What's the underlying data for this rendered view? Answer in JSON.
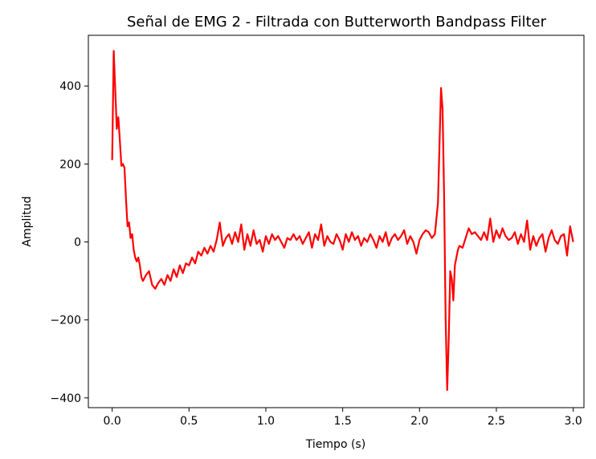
{
  "chart_data": {
    "type": "line",
    "title": "Señal de EMG 2 - Filtrada con Butterworth Bandpass Filter",
    "xlabel": "Tiempo (s)",
    "ylabel": "Amplitud",
    "xlim": [
      -0.155,
      3.07
    ],
    "ylim": [
      -425,
      530
    ],
    "xticks": [
      0.0,
      0.5,
      1.0,
      1.5,
      2.0,
      2.5,
      3.0
    ],
    "xtick_labels": [
      "0.0",
      "0.5",
      "1.0",
      "1.5",
      "2.0",
      "2.5",
      "3.0"
    ],
    "yticks": [
      400,
      200,
      0,
      -200,
      -400
    ],
    "ytick_labels": [
      "400",
      "200",
      "0",
      "−200",
      "−400"
    ],
    "grid": false,
    "line_color": "#ff0000",
    "series": [
      {
        "x": [
          0.0,
          0.01,
          0.02,
          0.03,
          0.04,
          0.05,
          0.06,
          0.07,
          0.08,
          0.09,
          0.1,
          0.11,
          0.12,
          0.13,
          0.14,
          0.15,
          0.16,
          0.17,
          0.18,
          0.19,
          0.2,
          0.22,
          0.24,
          0.26,
          0.28,
          0.3,
          0.32,
          0.34,
          0.36,
          0.38,
          0.4,
          0.42,
          0.44,
          0.46,
          0.48,
          0.5,
          0.52,
          0.54,
          0.56,
          0.58,
          0.6,
          0.62,
          0.64,
          0.66,
          0.68,
          0.7,
          0.72,
          0.74,
          0.76,
          0.78,
          0.8,
          0.82,
          0.84,
          0.86,
          0.88,
          0.9,
          0.92,
          0.94,
          0.96,
          0.98,
          1.0,
          1.02,
          1.04,
          1.06,
          1.08,
          1.1,
          1.12,
          1.14,
          1.16,
          1.18,
          1.2,
          1.22,
          1.24,
          1.26,
          1.28,
          1.3,
          1.32,
          1.34,
          1.36,
          1.38,
          1.4,
          1.42,
          1.44,
          1.46,
          1.48,
          1.5,
          1.52,
          1.54,
          1.56,
          1.58,
          1.6,
          1.62,
          1.64,
          1.66,
          1.68,
          1.7,
          1.72,
          1.74,
          1.76,
          1.78,
          1.8,
          1.82,
          1.84,
          1.86,
          1.88,
          1.9,
          1.92,
          1.94,
          1.96,
          1.98,
          2.0,
          2.02,
          2.04,
          2.06,
          2.08,
          2.1,
          2.12,
          2.13,
          2.14,
          2.15,
          2.16,
          2.17,
          2.18,
          2.19,
          2.2,
          2.21,
          2.22,
          2.23,
          2.24,
          2.25,
          2.26,
          2.28,
          2.3,
          2.32,
          2.34,
          2.36,
          2.38,
          2.4,
          2.42,
          2.44,
          2.46,
          2.48,
          2.5,
          2.52,
          2.54,
          2.56,
          2.58,
          2.6,
          2.62,
          2.64,
          2.66,
          2.68,
          2.7,
          2.72,
          2.74,
          2.76,
          2.78,
          2.8,
          2.82,
          2.84,
          2.86,
          2.88,
          2.9,
          2.92,
          2.94,
          2.96,
          2.98,
          3.0
        ],
        "y": [
          210,
          490,
          390,
          290,
          320,
          260,
          195,
          200,
          190,
          110,
          40,
          50,
          10,
          20,
          -20,
          -40,
          -50,
          -40,
          -60,
          -90,
          -100,
          -85,
          -75,
          -110,
          -120,
          -105,
          -95,
          -110,
          -85,
          -100,
          -70,
          -90,
          -60,
          -80,
          -55,
          -60,
          -40,
          -55,
          -25,
          -35,
          -15,
          -30,
          -10,
          -25,
          5,
          50,
          -10,
          10,
          20,
          -5,
          25,
          0,
          45,
          -20,
          20,
          -10,
          30,
          -5,
          5,
          -25,
          15,
          -5,
          20,
          5,
          15,
          0,
          -15,
          10,
          5,
          20,
          5,
          15,
          -5,
          10,
          25,
          -15,
          20,
          5,
          45,
          -10,
          15,
          0,
          -5,
          20,
          5,
          -20,
          20,
          0,
          25,
          5,
          15,
          -10,
          10,
          0,
          20,
          5,
          -15,
          15,
          0,
          25,
          -10,
          10,
          20,
          5,
          15,
          30,
          -5,
          15,
          0,
          -30,
          5,
          20,
          30,
          25,
          10,
          20,
          100,
          250,
          395,
          340,
          120,
          -200,
          -380,
          -250,
          -75,
          -95,
          -150,
          -60,
          -40,
          -20,
          -10,
          -15,
          10,
          35,
          20,
          25,
          15,
          5,
          25,
          5,
          60,
          0,
          30,
          10,
          35,
          15,
          5,
          10,
          25,
          -5,
          20,
          0,
          55,
          -20,
          15,
          -10,
          10,
          20,
          -25,
          10,
          30,
          5,
          -5,
          15,
          20,
          -35,
          40,
          0
        ]
      }
    ]
  }
}
